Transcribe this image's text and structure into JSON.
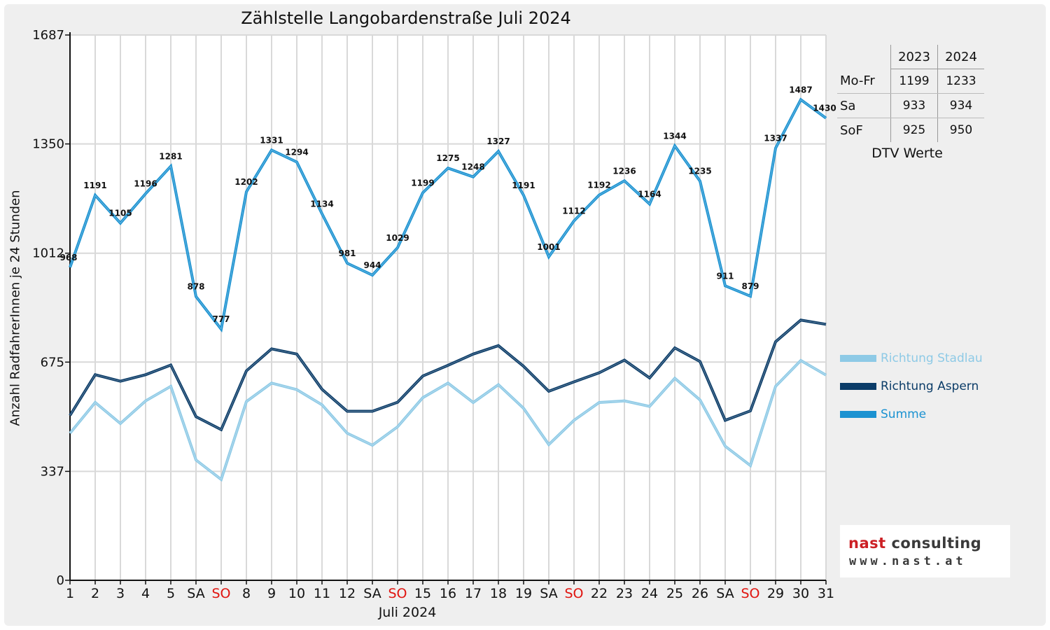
{
  "chart_data": {
    "type": "line",
    "title": "Zählstelle Langobardenstraße Juli 2024",
    "xlabel": "Juli 2024",
    "ylabel": "Anzahl RadfahrerInnen je 24 Stunden",
    "ylim": [
      0,
      1687
    ],
    "yticks": [
      "0",
      "337",
      "675",
      "1012",
      "1350",
      "1687"
    ],
    "ytick_values": [
      0,
      337,
      675,
      1012,
      1350,
      1687
    ],
    "categories": [
      "1",
      "2",
      "3",
      "4",
      "5",
      "SA",
      "SO",
      "8",
      "9",
      "10",
      "11",
      "12",
      "SA",
      "SO",
      "15",
      "16",
      "17",
      "18",
      "19",
      "SA",
      "SO",
      "22",
      "23",
      "24",
      "25",
      "26",
      "SA",
      "SO",
      "29",
      "30",
      "31"
    ],
    "weekend_colors": {
      "SA": "#111111",
      "SO": "#e0140f"
    },
    "grid": true,
    "legend_position": "right",
    "series": [
      {
        "name": "Richtung Stadlau",
        "color": "#8ecae6",
        "values": [
          455,
          550,
          485,
          555,
          600,
          372,
          312,
          553,
          610,
          590,
          543,
          455,
          418,
          475,
          565,
          610,
          550,
          605,
          532,
          420,
          495,
          550,
          555,
          538,
          625,
          558,
          415,
          355,
          600,
          680,
          635
        ]
      },
      {
        "name": "Richtung Aspern",
        "color": "#0b3c68",
        "values": [
          510,
          636,
          616,
          636,
          666,
          506,
          466,
          648,
          716,
          700,
          591,
          523,
          523,
          551,
          632,
          665,
          700,
          726,
          662,
          585,
          614,
          642,
          681,
          626,
          719,
          677,
          495,
          524,
          738,
          805,
          792
        ]
      },
      {
        "name": "Summe",
        "color": "#1b92d1",
        "values": [
          968,
          1191,
          1105,
          1196,
          1281,
          878,
          777,
          1202,
          1331,
          1294,
          1134,
          981,
          944,
          1029,
          1199,
          1275,
          1248,
          1327,
          1191,
          1001,
          1112,
          1192,
          1236,
          1164,
          1344,
          1235,
          911,
          879,
          1337,
          1487,
          1430
        ]
      }
    ],
    "data_labels": [
      "968",
      "1191",
      "1105",
      "1196",
      "1281",
      "878",
      "777",
      "1202",
      "1331",
      "1294",
      "1134",
      "981",
      "944",
      "1029",
      "1199",
      "1275",
      "1248",
      "1327",
      "1191",
      "1001",
      "1112",
      "1192",
      "1236",
      "1164",
      "1344",
      "1235",
      "911",
      "879",
      "1337",
      "1487",
      "1430"
    ]
  },
  "dtv_table": {
    "headers": [
      "",
      "2023",
      "2024"
    ],
    "rows": [
      {
        "label": "Mo-Fr",
        "v2023": "1199",
        "v2024": "1233"
      },
      {
        "label": "Sa",
        "v2023": "933",
        "v2024": "934"
      },
      {
        "label": "SoF",
        "v2023": "925",
        "v2024": "950"
      }
    ],
    "caption": "DTV Werte"
  },
  "logo": {
    "word1": "nast",
    "word2": "consulting",
    "url": "www.nast.at"
  }
}
